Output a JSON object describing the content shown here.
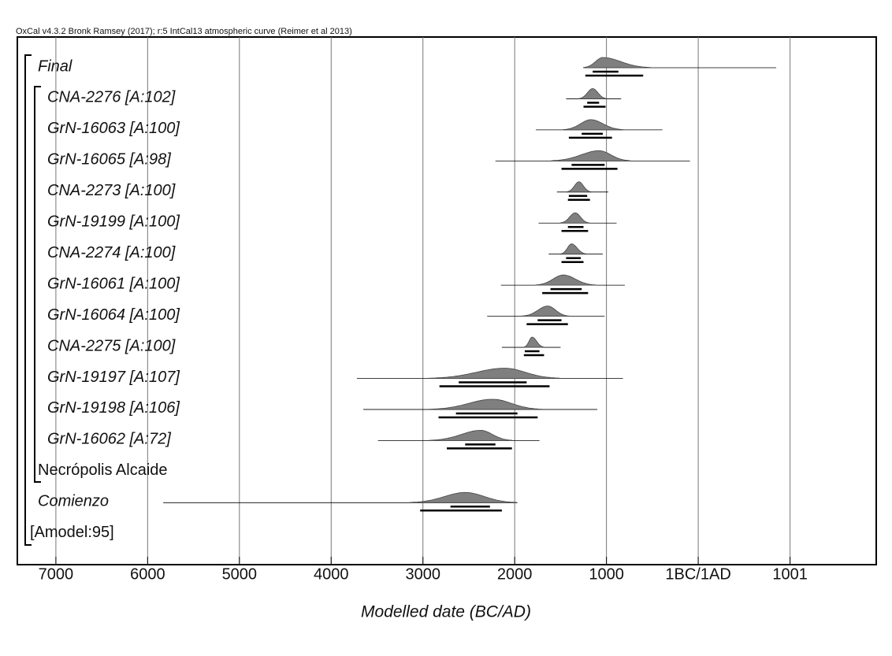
{
  "chart_data": {
    "type": "oxcal-multiplot",
    "header": "OxCal v4.3.2 Bronk Ramsey (2017); r:5 IntCal13 atmospheric curve (Reimer et al 2013)",
    "xlabel": "Modelled date (BC/AD)",
    "xlim": [
      -7420,
      1940
    ],
    "xticks": [
      {
        "value": -7000,
        "label": "7000"
      },
      {
        "value": -6000,
        "label": "6000"
      },
      {
        "value": -5000,
        "label": "5000"
      },
      {
        "value": -4000,
        "label": "4000"
      },
      {
        "value": -3000,
        "label": "3000"
      },
      {
        "value": -2000,
        "label": "2000"
      },
      {
        "value": -1000,
        "label": "1000"
      },
      {
        "value": 0,
        "label": "1BC/1AD"
      },
      1001
    ],
    "grid": true,
    "rows": [
      {
        "label": "Final",
        "range": [
          -1250,
          850
        ],
        "posterior": [
          -1250,
          -520
        ],
        "peak": -1040,
        "hpd68": [
          -1150,
          -870
        ],
        "hpd95": [
          -1230,
          -600
        ]
      },
      {
        "label": "CNA-2276 [A:102]",
        "range": [
          -1440,
          -840
        ],
        "posterior": [
          -1300,
          -1000
        ],
        "peak": -1150,
        "hpd68": [
          -1210,
          -1080
        ],
        "hpd95": [
          -1250,
          -1010
        ]
      },
      {
        "label": "GrN-16063 [A:100]",
        "range": [
          -1770,
          -390
        ],
        "posterior": [
          -1470,
          -820
        ],
        "peak": -1170,
        "hpd68": [
          -1270,
          -1040
        ],
        "hpd95": [
          -1410,
          -940
        ]
      },
      {
        "label": "GrN-16065 [A:98]",
        "range": [
          -2210,
          -90
        ],
        "posterior": [
          -1600,
          -740
        ],
        "peak": -1080,
        "hpd68": [
          -1380,
          -1020
        ],
        "hpd95": [
          -1490,
          -880
        ]
      },
      {
        "label": "CNA-2273 [A:100]",
        "range": [
          -1540,
          -980
        ],
        "posterior": [
          -1430,
          -1170
        ],
        "peak": -1300,
        "hpd68": [
          -1410,
          -1210
        ],
        "hpd95": [
          -1420,
          -1180
        ]
      },
      {
        "label": "GrN-19199 [A:100]",
        "range": [
          -1740,
          -890
        ],
        "posterior": [
          -1500,
          -1190
        ],
        "peak": -1340,
        "hpd68": [
          -1420,
          -1250
        ],
        "hpd95": [
          -1490,
          -1200
        ]
      },
      {
        "label": "CNA-2274 [A:100]",
        "range": [
          -1630,
          -1040
        ],
        "posterior": [
          -1500,
          -1220
        ],
        "peak": -1380,
        "hpd68": [
          -1440,
          -1280
        ],
        "hpd95": [
          -1490,
          -1250
        ]
      },
      {
        "label": "GrN-16061 [A:100]",
        "range": [
          -2150,
          -800
        ],
        "posterior": [
          -1770,
          -1120
        ],
        "peak": -1470,
        "hpd68": [
          -1610,
          -1270
        ],
        "hpd95": [
          -1700,
          -1200
        ]
      },
      {
        "label": "GrN-16064 [A:100]",
        "range": [
          -2300,
          -1020
        ],
        "posterior": [
          -1920,
          -1410
        ],
        "peak": -1640,
        "hpd68": [
          -1750,
          -1490
        ],
        "hpd95": [
          -1870,
          -1420
        ]
      },
      {
        "label": "CNA-2275 [A:100]",
        "range": [
          -2140,
          -1500
        ],
        "posterior": [
          -1900,
          -1680
        ],
        "peak": -1810,
        "hpd68": [
          -1890,
          -1730
        ],
        "hpd95": [
          -1900,
          -1680
        ]
      },
      {
        "label": "GrN-19197 [A:107]",
        "range": [
          -3720,
          -820
        ],
        "posterior": [
          -2930,
          -1510
        ],
        "peak": -2110,
        "hpd68": [
          -2610,
          -1870
        ],
        "hpd95": [
          -2820,
          -1620
        ]
      },
      {
        "label": "GrN-19198 [A:106]",
        "range": [
          -3650,
          -1100
        ],
        "posterior": [
          -2930,
          -1700
        ],
        "peak": -2240,
        "hpd68": [
          -2640,
          -1970
        ],
        "hpd95": [
          -2830,
          -1750
        ]
      },
      {
        "label": "GrN-16062 [A:72]",
        "range": [
          -3490,
          -1730
        ],
        "posterior": [
          -2930,
          -2030
        ],
        "peak": -2370,
        "hpd68": [
          -2540,
          -2210
        ],
        "hpd95": [
          -2740,
          -2030
        ]
      },
      {
        "label": "Necrópolis Alcaide"
      },
      {
        "label": "Comienzo",
        "range": [
          -5830,
          -1970
        ],
        "posterior": [
          -3140,
          -1980
        ],
        "peak": -2540,
        "hpd68": [
          -2700,
          -2270
        ],
        "hpd95": [
          -3030,
          -2140
        ]
      },
      {
        "label": "[Amodel:95]"
      }
    ]
  }
}
